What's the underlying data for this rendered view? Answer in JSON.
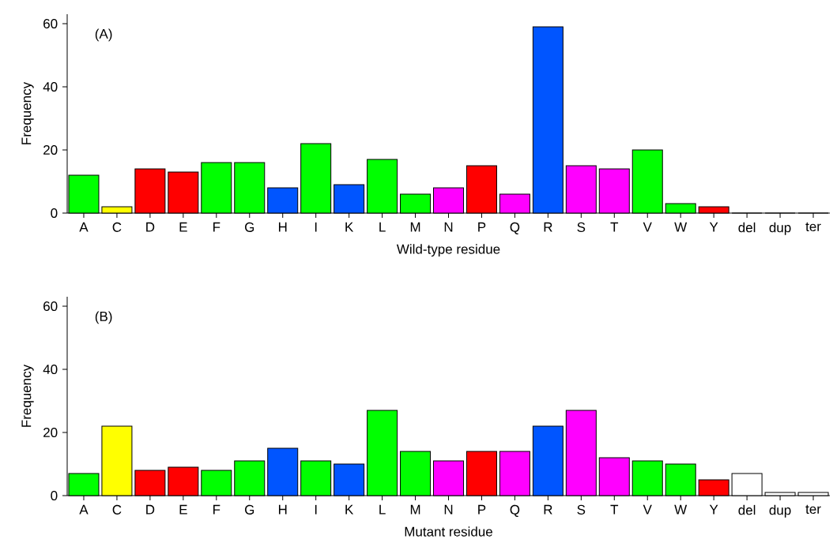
{
  "chart_data": [
    {
      "type": "bar",
      "xlabel": "Wild-type residue",
      "ylabel": "Frequency",
      "annotations": [
        "(A)"
      ],
      "categories": [
        "A",
        "C",
        "D",
        "E",
        "F",
        "G",
        "H",
        "I",
        "K",
        "L",
        "M",
        "N",
        "P",
        "Q",
        "R",
        "S",
        "T",
        "V",
        "W",
        "Y",
        "del",
        "dup",
        "ter"
      ],
      "values": [
        12,
        2,
        14,
        13,
        16,
        16,
        8,
        22,
        9,
        17,
        6,
        8,
        15,
        6,
        59,
        15,
        14,
        20,
        3,
        2,
        0,
        0,
        0
      ],
      "colors": [
        "#00ff00",
        "#ffff00",
        "#ff0000",
        "#ff0000",
        "#00ff00",
        "#00ff00",
        "#0055ff",
        "#00ff00",
        "#0055ff",
        "#00ff00",
        "#00ff00",
        "#ff00ff",
        "#ff0000",
        "#ff00ff",
        "#0055ff",
        "#ff00ff",
        "#ff00ff",
        "#00ff00",
        "#00ff00",
        "#ff0000",
        "#ffffff",
        "#ffffff",
        "#ffffff"
      ],
      "ylim": [
        0,
        63
      ],
      "yticks": [
        0,
        20,
        40,
        60
      ]
    },
    {
      "type": "bar",
      "xlabel": "Mutant residue",
      "ylabel": "Frequency",
      "annotations": [
        "(B)"
      ],
      "categories": [
        "A",
        "C",
        "D",
        "E",
        "F",
        "G",
        "H",
        "I",
        "K",
        "L",
        "M",
        "N",
        "P",
        "Q",
        "R",
        "S",
        "T",
        "V",
        "W",
        "Y",
        "del",
        "dup",
        "ter"
      ],
      "values": [
        7,
        22,
        8,
        9,
        8,
        11,
        15,
        11,
        10,
        27,
        14,
        11,
        14,
        14,
        22,
        27,
        12,
        11,
        10,
        5,
        7,
        1,
        1
      ],
      "colors": [
        "#00ff00",
        "#ffff00",
        "#ff0000",
        "#ff0000",
        "#00ff00",
        "#00ff00",
        "#0055ff",
        "#00ff00",
        "#0055ff",
        "#00ff00",
        "#00ff00",
        "#ff00ff",
        "#ff0000",
        "#ff00ff",
        "#0055ff",
        "#ff00ff",
        "#ff00ff",
        "#00ff00",
        "#00ff00",
        "#ff0000",
        "#ffffff",
        "#ffffff",
        "#ffffff"
      ],
      "ylim": [
        0,
        63
      ],
      "yticks": [
        0,
        20,
        40,
        60
      ]
    }
  ]
}
